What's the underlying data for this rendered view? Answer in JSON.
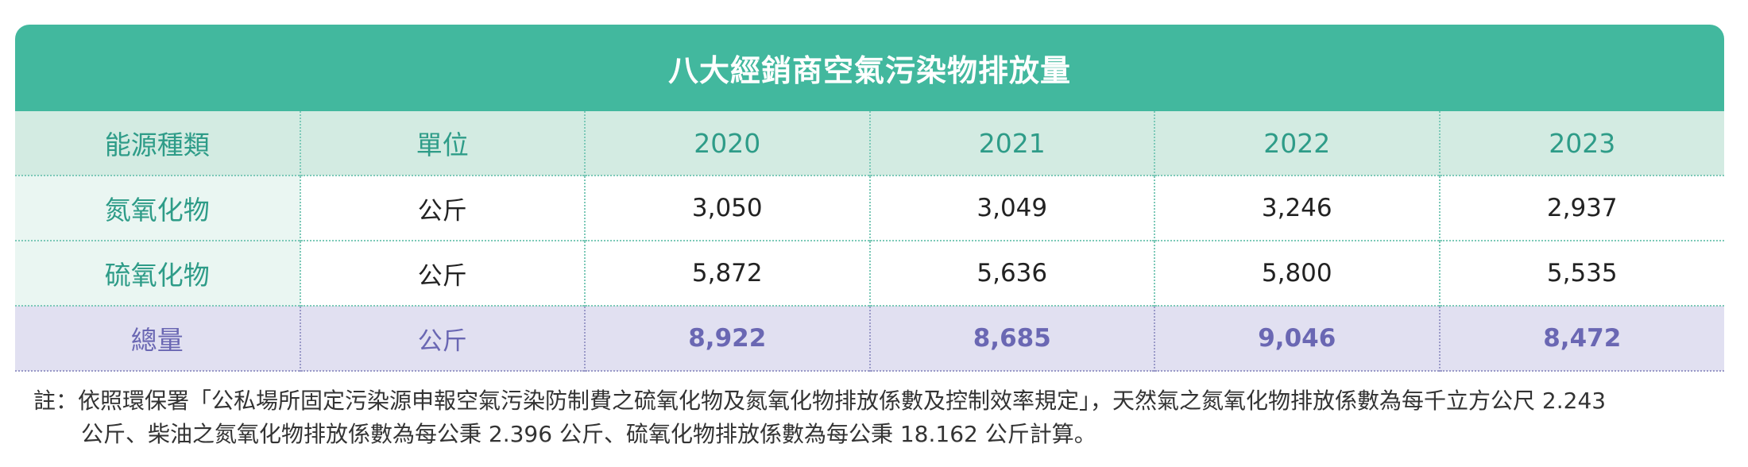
{
  "table": {
    "title": "八大經銷商空氣污染物排放量",
    "headers": [
      "能源種類",
      "單位",
      "2020",
      "2021",
      "2022",
      "2023"
    ],
    "rows": [
      {
        "label": "氮氧化物",
        "unit": "公斤",
        "values": [
          "3,050",
          "3,049",
          "3,246",
          "2,937"
        ]
      },
      {
        "label": "硫氧化物",
        "unit": "公斤",
        "values": [
          "5,872",
          "5,636",
          "5,800",
          "5,535"
        ]
      }
    ],
    "total": {
      "label": "總量",
      "unit": "公斤",
      "values": [
        "8,922",
        "8,685",
        "9,046",
        "8,472"
      ]
    }
  },
  "note": {
    "line1": "註：依照環保署「公私場所固定污染源申報空氣污染防制費之硫氧化物及氮氧化物排放係數及控制效率規定」，天然氣之氮氧化物排放係數為每千立方公尺 2.243",
    "line2": "公斤、柴油之氮氧化物排放係數為每公秉 2.396 公斤、硫氧化物排放係數為每公秉 18.162 公斤計算。"
  },
  "colors": {
    "title_bg": "#42b89e",
    "header_bg": "#d3ebe2",
    "header_text": "#2e9c88",
    "total_bg": "#e1e0f1",
    "total_text": "#6a67b3"
  }
}
